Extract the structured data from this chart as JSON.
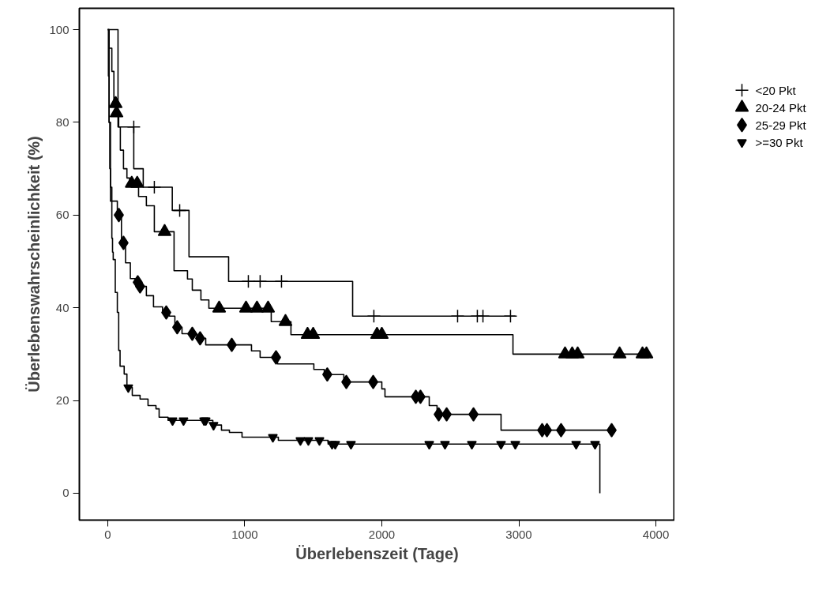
{
  "chart_data": {
    "type": "step",
    "xlabel": "Überlebenszeit (Tage)",
    "ylabel": "Überlebenswahrscheinlichkeit (%)",
    "xlim": [
      -207,
      4138
    ],
    "ylim": [
      -5.8,
      104.6
    ],
    "xticks": [
      0,
      1000,
      2000,
      3000,
      4000
    ],
    "yticks": [
      0,
      20,
      40,
      60,
      80,
      100
    ],
    "grid": false,
    "legend": "top right",
    "series": [
      {
        "color": "#000000",
        "x": [
          0,
          75,
          190,
          259,
          471,
          593,
          882,
          1787,
          2974
        ],
        "values": [
          100,
          79,
          70,
          66,
          61,
          51,
          45.7,
          38.2,
          38.2
        ]
      },
      {
        "color": "#000000",
        "x": [
          0,
          10,
          30,
          45,
          62,
          80,
          92,
          115,
          140,
          160,
          225,
          282,
          340,
          484,
          582,
          617,
          680,
          738,
          1193,
          1337,
          2957,
          3950
        ],
        "values": [
          100,
          96,
          91,
          84,
          82,
          79,
          74,
          70,
          68,
          66.8,
          64,
          62,
          56.4,
          48,
          46.2,
          43.8,
          41.7,
          39.9,
          37,
          34.2,
          30,
          30
        ]
      },
      {
        "color": "#000000",
        "x": [
          0,
          5,
          10,
          15,
          20,
          70,
          100,
          130,
          165,
          200,
          225,
          282,
          334,
          400,
          450,
          490,
          542,
          650,
          715,
          1049,
          1112,
          1239,
          1504,
          1580,
          1723,
          2000,
          2023,
          2346,
          2403,
          2870,
          3677
        ],
        "values": [
          100,
          90,
          80,
          70,
          63,
          60,
          54,
          49.7,
          46.3,
          45.5,
          44.6,
          42.6,
          40.2,
          39,
          38.2,
          35.8,
          34.4,
          33.4,
          32,
          30.7,
          29.3,
          27.9,
          26.7,
          25.6,
          24,
          22.5,
          20.8,
          18.9,
          17,
          13.6,
          13.6
        ]
      },
      {
        "color": "#000000",
        "x": [
          0,
          10,
          20,
          30,
          35,
          40,
          55,
          70,
          80,
          90,
          120,
          140,
          179,
          236,
          294,
          352,
          375,
          440,
          767,
          830,
          888,
          980,
          1245,
          1608,
          3591
        ],
        "values": [
          100,
          80,
          66,
          55,
          52,
          50.4,
          43.3,
          39,
          30.8,
          27.4,
          25.7,
          22.8,
          21.1,
          20.3,
          18.9,
          18.2,
          16.4,
          15.7,
          14.7,
          13.6,
          13.1,
          12.1,
          11.4,
          10.6,
          0
        ]
      },
      {
        "type": "scatter",
        "name": "<20 Pkt",
        "marker": "cross",
        "color": "#000000",
        "x": [
          190,
          340,
          525,
          1026,
          1112,
          1268,
          1942,
          2553,
          2697,
          2738,
          2939
        ],
        "values": [
          79,
          66,
          61,
          45.7,
          45.7,
          45.7,
          38.2,
          38.2,
          38.2,
          38.2,
          38.2
        ]
      },
      {
        "type": "scatter",
        "name": "20-24 Pkt",
        "marker": "triangle",
        "color": "#000000",
        "x": [
          58,
          64,
          175,
          215,
          415,
          813,
          1009,
          1089,
          1170,
          1297,
          1458,
          1499,
          1965,
          2000,
          3337,
          3389,
          3429,
          3735,
          3902,
          3931
        ],
        "values": [
          84,
          82,
          66.8,
          66.8,
          56.4,
          39.9,
          39.9,
          39.9,
          39.9,
          37,
          34.2,
          34.2,
          34.2,
          34.2,
          30,
          30,
          30,
          30,
          30,
          30
        ]
      },
      {
        "type": "scatter",
        "name": "25-29 Pkt",
        "marker": "diamond",
        "color": "#000000",
        "x": [
          81,
          115,
          219,
          236,
          427,
          507,
          617,
          674,
          905,
          1228,
          1602,
          1741,
          1937,
          2248,
          2282,
          2415,
          2473,
          2669,
          3170,
          3205,
          3308,
          3677
        ],
        "values": [
          60,
          54,
          45.5,
          44.6,
          39,
          35.8,
          34.4,
          33.4,
          32,
          29.3,
          25.6,
          24,
          24,
          20.8,
          20.8,
          17,
          17,
          17,
          13.6,
          13.6,
          13.6,
          13.6
        ]
      },
      {
        "type": "scatter",
        "name": ">=30 Pkt",
        "color": "#000000",
        "x": [
          150,
          473,
          553,
          703,
          715,
          772,
          1205,
          1406,
          1464,
          1545,
          1637,
          1660,
          1775,
          2346,
          2461,
          2657,
          2870,
          2974,
          3418,
          3556
        ],
        "values": [
          22.8,
          15.7,
          15.7,
          15.7,
          15.7,
          14.7,
          12.1,
          11.4,
          11.4,
          11.4,
          10.6,
          10.6,
          10.6,
          10.6,
          10.6,
          10.6,
          10.6,
          10.6,
          10.6,
          10.6
        ]
      }
    ]
  }
}
